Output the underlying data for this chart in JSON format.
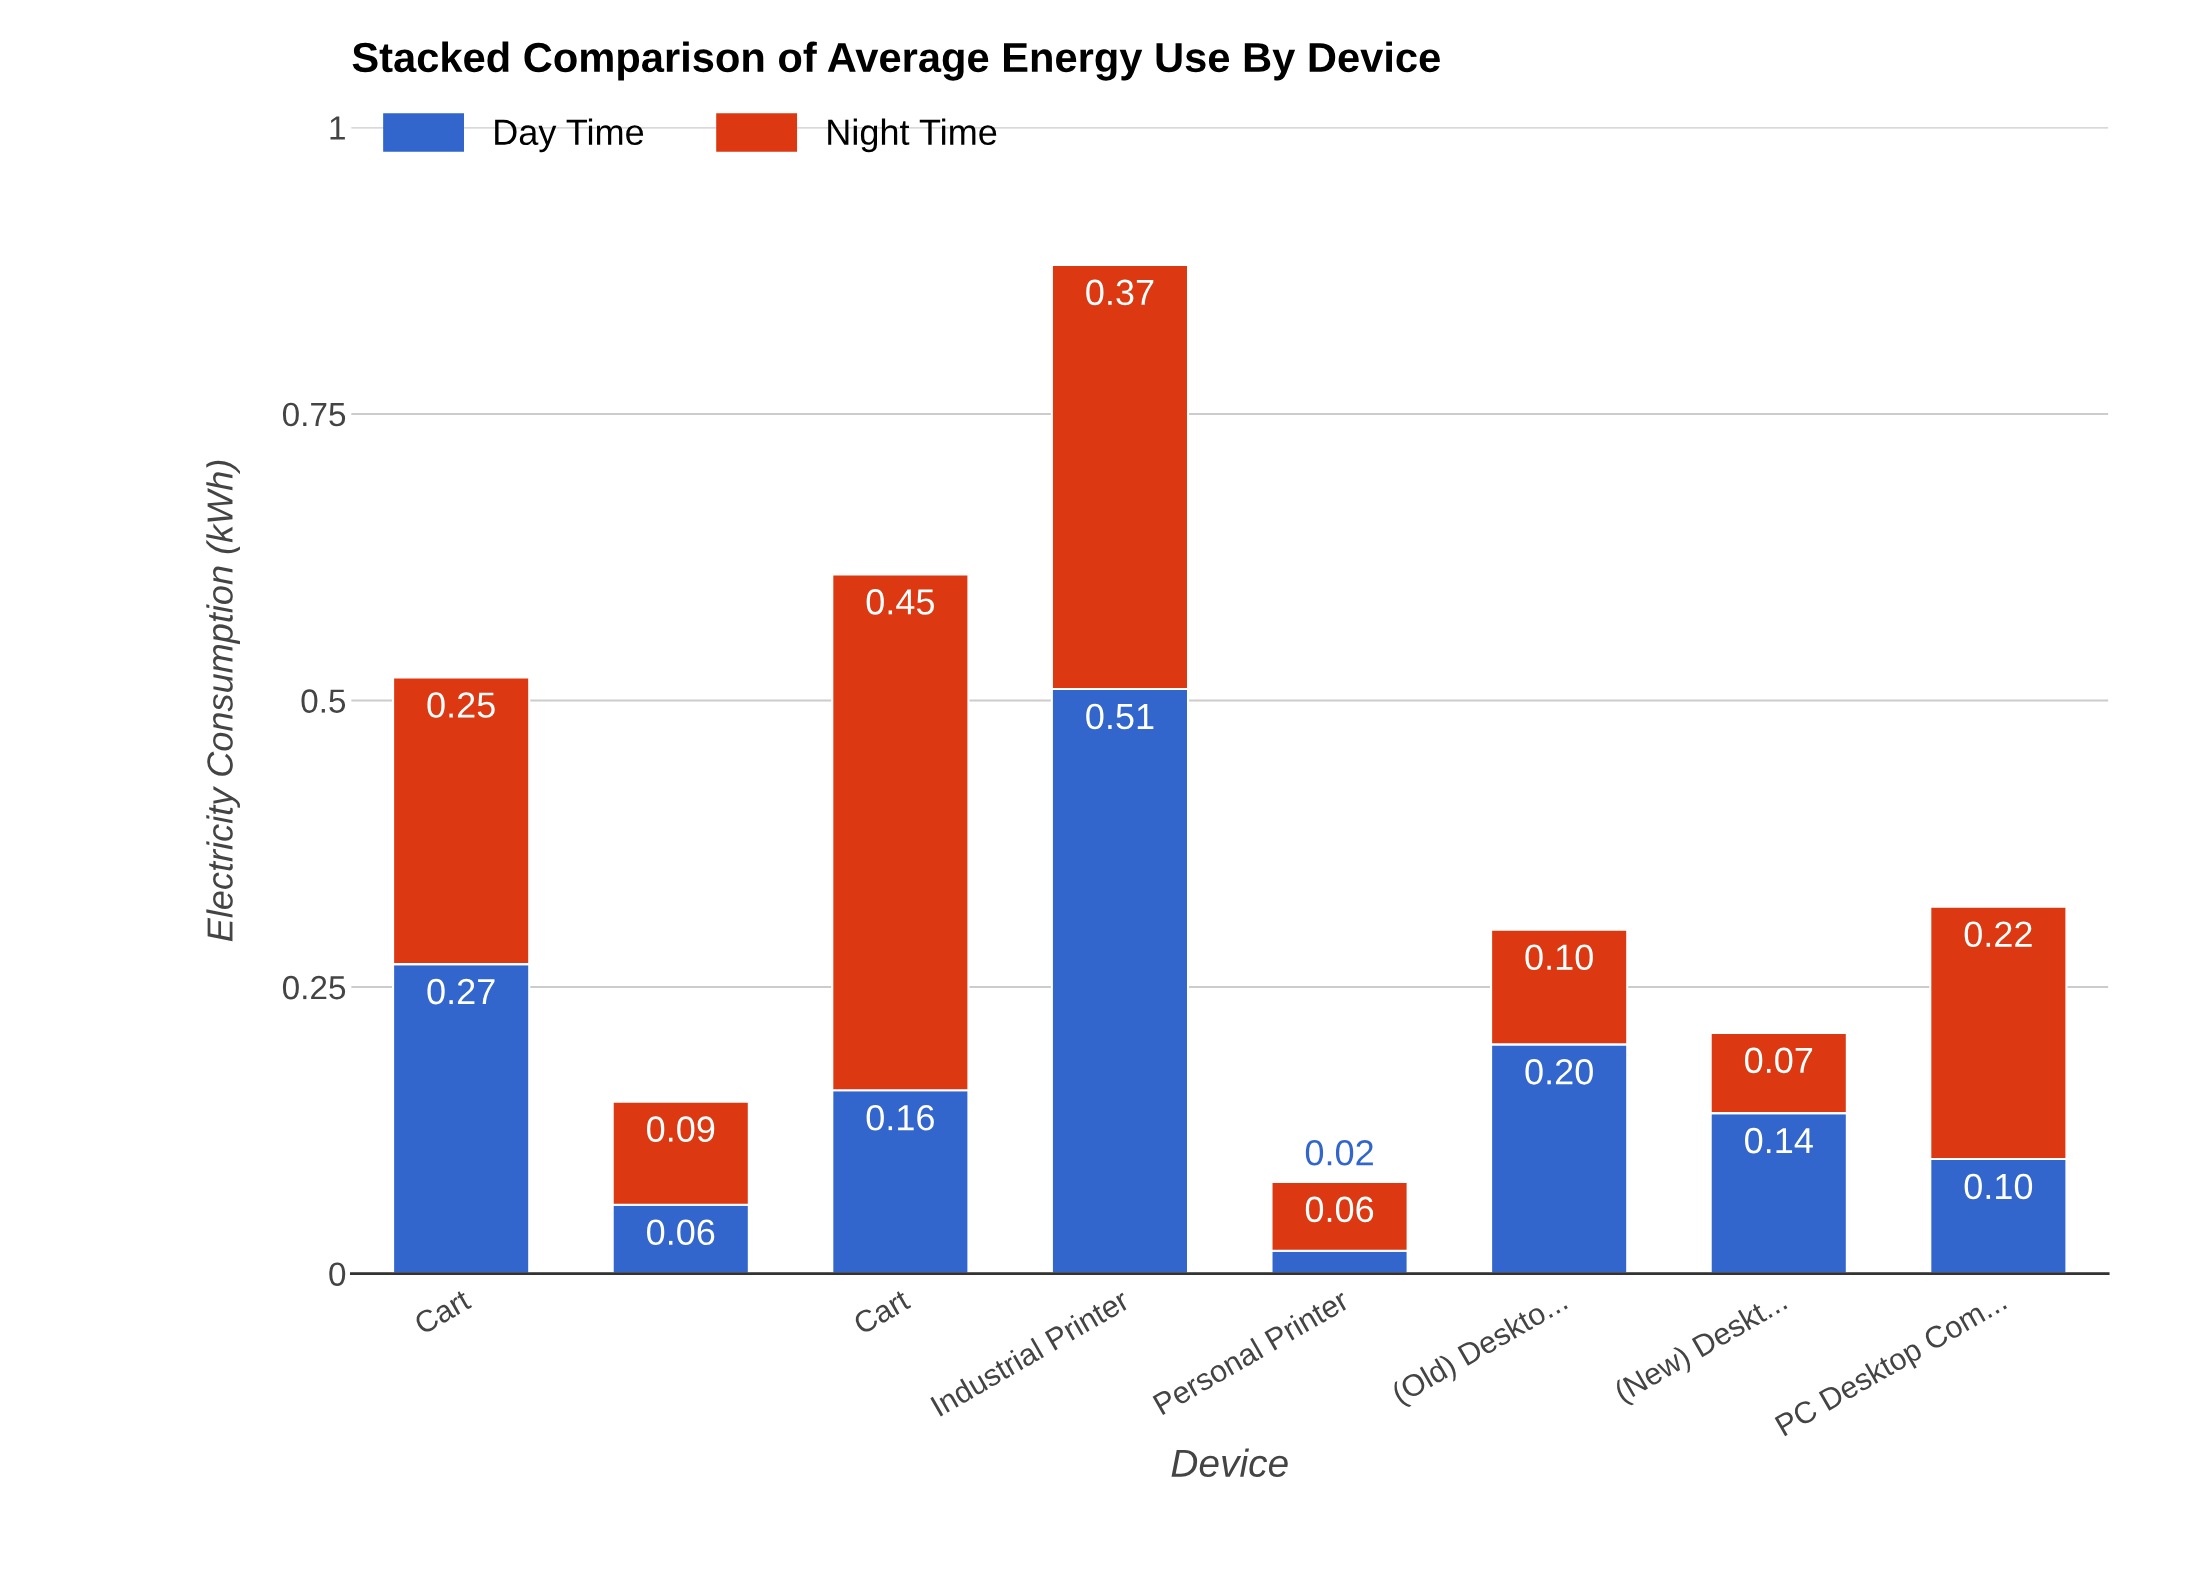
{
  "chart_data": {
    "type": "bar",
    "title": "Stacked Comparison of Average Energy Use By Device",
    "xlabel": "Device",
    "ylabel": "Electricity Consumption (kWh)",
    "categories": [
      "Cart",
      null,
      "Cart",
      "Industrial Printer",
      "Personal Printer",
      "(Old) Deskto...",
      "(New) Deskt...",
      "PC Desktop Com..."
    ],
    "stacked": true,
    "series": [
      {
        "name": "Day Time",
        "color": "#3366cc",
        "values": [
          0.27,
          0.06,
          0.16,
          0.51,
          0.02,
          0.2,
          0.14,
          0.1
        ],
        "value_labels": [
          "0.27",
          "0.06",
          "0.16",
          "0.51",
          "0.02",
          "0.20",
          "0.14",
          "0.10"
        ]
      },
      {
        "name": "Night Time",
        "color": "#dc3912",
        "values": [
          0.25,
          0.09,
          0.45,
          0.37,
          0.06,
          0.1,
          0.07,
          0.22
        ],
        "value_labels": [
          "0.25",
          "0.09",
          "0.45",
          "0.37",
          "0.06",
          "0.10",
          "0.07",
          "0.22"
        ]
      }
    ],
    "ylim": [
      0,
      1
    ],
    "yticks": [
      0,
      0.25,
      0.5,
      0.75,
      1
    ],
    "grid": "y",
    "legend": "top left"
  }
}
